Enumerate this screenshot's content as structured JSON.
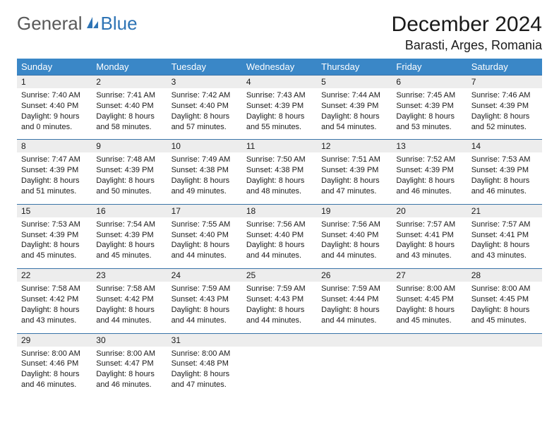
{
  "logo": {
    "part1": "General",
    "part2": "Blue"
  },
  "title": "December 2024",
  "location": "Barasti, Arges, Romania",
  "colors": {
    "header_bg": "#3a87c7",
    "header_text": "#ffffff",
    "daynum_bg": "#ededed",
    "border": "#3a74a8",
    "logo_gray": "#595959",
    "logo_blue": "#2e74b5"
  },
  "day_headers": [
    "Sunday",
    "Monday",
    "Tuesday",
    "Wednesday",
    "Thursday",
    "Friday",
    "Saturday"
  ],
  "weeks": [
    [
      {
        "n": "1",
        "sr": "Sunrise: 7:40 AM",
        "ss": "Sunset: 4:40 PM",
        "d1": "Daylight: 9 hours",
        "d2": "and 0 minutes."
      },
      {
        "n": "2",
        "sr": "Sunrise: 7:41 AM",
        "ss": "Sunset: 4:40 PM",
        "d1": "Daylight: 8 hours",
        "d2": "and 58 minutes."
      },
      {
        "n": "3",
        "sr": "Sunrise: 7:42 AM",
        "ss": "Sunset: 4:40 PM",
        "d1": "Daylight: 8 hours",
        "d2": "and 57 minutes."
      },
      {
        "n": "4",
        "sr": "Sunrise: 7:43 AM",
        "ss": "Sunset: 4:39 PM",
        "d1": "Daylight: 8 hours",
        "d2": "and 55 minutes."
      },
      {
        "n": "5",
        "sr": "Sunrise: 7:44 AM",
        "ss": "Sunset: 4:39 PM",
        "d1": "Daylight: 8 hours",
        "d2": "and 54 minutes."
      },
      {
        "n": "6",
        "sr": "Sunrise: 7:45 AM",
        "ss": "Sunset: 4:39 PM",
        "d1": "Daylight: 8 hours",
        "d2": "and 53 minutes."
      },
      {
        "n": "7",
        "sr": "Sunrise: 7:46 AM",
        "ss": "Sunset: 4:39 PM",
        "d1": "Daylight: 8 hours",
        "d2": "and 52 minutes."
      }
    ],
    [
      {
        "n": "8",
        "sr": "Sunrise: 7:47 AM",
        "ss": "Sunset: 4:39 PM",
        "d1": "Daylight: 8 hours",
        "d2": "and 51 minutes."
      },
      {
        "n": "9",
        "sr": "Sunrise: 7:48 AM",
        "ss": "Sunset: 4:39 PM",
        "d1": "Daylight: 8 hours",
        "d2": "and 50 minutes."
      },
      {
        "n": "10",
        "sr": "Sunrise: 7:49 AM",
        "ss": "Sunset: 4:38 PM",
        "d1": "Daylight: 8 hours",
        "d2": "and 49 minutes."
      },
      {
        "n": "11",
        "sr": "Sunrise: 7:50 AM",
        "ss": "Sunset: 4:38 PM",
        "d1": "Daylight: 8 hours",
        "d2": "and 48 minutes."
      },
      {
        "n": "12",
        "sr": "Sunrise: 7:51 AM",
        "ss": "Sunset: 4:39 PM",
        "d1": "Daylight: 8 hours",
        "d2": "and 47 minutes."
      },
      {
        "n": "13",
        "sr": "Sunrise: 7:52 AM",
        "ss": "Sunset: 4:39 PM",
        "d1": "Daylight: 8 hours",
        "d2": "and 46 minutes."
      },
      {
        "n": "14",
        "sr": "Sunrise: 7:53 AM",
        "ss": "Sunset: 4:39 PM",
        "d1": "Daylight: 8 hours",
        "d2": "and 46 minutes."
      }
    ],
    [
      {
        "n": "15",
        "sr": "Sunrise: 7:53 AM",
        "ss": "Sunset: 4:39 PM",
        "d1": "Daylight: 8 hours",
        "d2": "and 45 minutes."
      },
      {
        "n": "16",
        "sr": "Sunrise: 7:54 AM",
        "ss": "Sunset: 4:39 PM",
        "d1": "Daylight: 8 hours",
        "d2": "and 45 minutes."
      },
      {
        "n": "17",
        "sr": "Sunrise: 7:55 AM",
        "ss": "Sunset: 4:40 PM",
        "d1": "Daylight: 8 hours",
        "d2": "and 44 minutes."
      },
      {
        "n": "18",
        "sr": "Sunrise: 7:56 AM",
        "ss": "Sunset: 4:40 PM",
        "d1": "Daylight: 8 hours",
        "d2": "and 44 minutes."
      },
      {
        "n": "19",
        "sr": "Sunrise: 7:56 AM",
        "ss": "Sunset: 4:40 PM",
        "d1": "Daylight: 8 hours",
        "d2": "and 44 minutes."
      },
      {
        "n": "20",
        "sr": "Sunrise: 7:57 AM",
        "ss": "Sunset: 4:41 PM",
        "d1": "Daylight: 8 hours",
        "d2": "and 43 minutes."
      },
      {
        "n": "21",
        "sr": "Sunrise: 7:57 AM",
        "ss": "Sunset: 4:41 PM",
        "d1": "Daylight: 8 hours",
        "d2": "and 43 minutes."
      }
    ],
    [
      {
        "n": "22",
        "sr": "Sunrise: 7:58 AM",
        "ss": "Sunset: 4:42 PM",
        "d1": "Daylight: 8 hours",
        "d2": "and 43 minutes."
      },
      {
        "n": "23",
        "sr": "Sunrise: 7:58 AM",
        "ss": "Sunset: 4:42 PM",
        "d1": "Daylight: 8 hours",
        "d2": "and 44 minutes."
      },
      {
        "n": "24",
        "sr": "Sunrise: 7:59 AM",
        "ss": "Sunset: 4:43 PM",
        "d1": "Daylight: 8 hours",
        "d2": "and 44 minutes."
      },
      {
        "n": "25",
        "sr": "Sunrise: 7:59 AM",
        "ss": "Sunset: 4:43 PM",
        "d1": "Daylight: 8 hours",
        "d2": "and 44 minutes."
      },
      {
        "n": "26",
        "sr": "Sunrise: 7:59 AM",
        "ss": "Sunset: 4:44 PM",
        "d1": "Daylight: 8 hours",
        "d2": "and 44 minutes."
      },
      {
        "n": "27",
        "sr": "Sunrise: 8:00 AM",
        "ss": "Sunset: 4:45 PM",
        "d1": "Daylight: 8 hours",
        "d2": "and 45 minutes."
      },
      {
        "n": "28",
        "sr": "Sunrise: 8:00 AM",
        "ss": "Sunset: 4:45 PM",
        "d1": "Daylight: 8 hours",
        "d2": "and 45 minutes."
      }
    ],
    [
      {
        "n": "29",
        "sr": "Sunrise: 8:00 AM",
        "ss": "Sunset: 4:46 PM",
        "d1": "Daylight: 8 hours",
        "d2": "and 46 minutes."
      },
      {
        "n": "30",
        "sr": "Sunrise: 8:00 AM",
        "ss": "Sunset: 4:47 PM",
        "d1": "Daylight: 8 hours",
        "d2": "and 46 minutes."
      },
      {
        "n": "31",
        "sr": "Sunrise: 8:00 AM",
        "ss": "Sunset: 4:48 PM",
        "d1": "Daylight: 8 hours",
        "d2": "and 47 minutes."
      },
      null,
      null,
      null,
      null
    ]
  ]
}
